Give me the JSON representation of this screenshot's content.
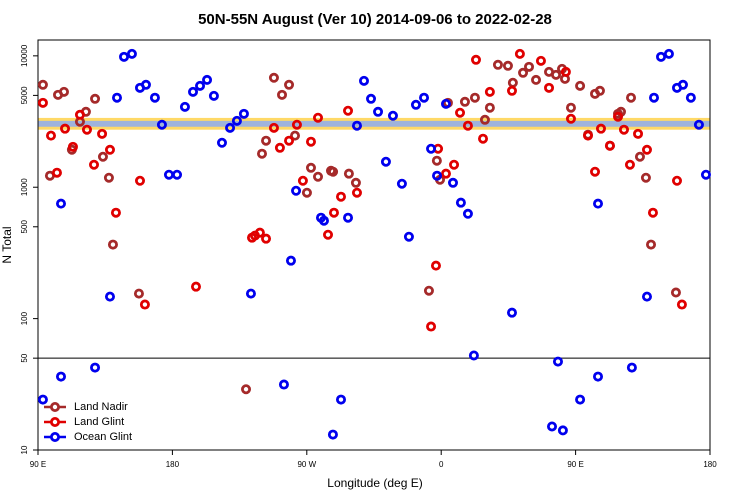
{
  "chart_data": {
    "type": "scatter",
    "title": "50N-55N August (Ver 10)   2014-09-06 to 2022-02-28",
    "x_label": "Longitude (deg E)",
    "y_label": "N Total",
    "xlim": [
      -270,
      180
    ],
    "xticks": [
      {
        "value": -270,
        "label": "90 E"
      },
      {
        "value": -180,
        "label": "180"
      },
      {
        "value": -90,
        "label": "90 W"
      },
      0,
      {
        "value": 90,
        "label": "90 E"
      },
      {
        "value": 180,
        "label": "180"
      }
    ],
    "ylim": [
      10,
      13200
    ],
    "yticks": [
      10,
      50,
      100,
      500,
      1000,
      5000,
      10000
    ],
    "log_y": true,
    "hline": 50,
    "band": {
      "low": 2740,
      "high": 3370,
      "colors": [
        "#ffd966",
        "#9fb3dc"
      ]
    },
    "legend": "lower left",
    "series": [
      {
        "name": "Land Nadir",
        "color": "#a52a2a",
        "x": [
          -266.7,
          -262,
          -256.6,
          -252.6,
          -247.3,
          -241.9,
          -237.9,
          -231.8,
          -226.5,
          -222.5,
          -219.8,
          -202.4,
          -130.7,
          -120,
          -117.3,
          -112,
          -106.6,
          -101.9,
          -97.9,
          -89.9,
          -87.2,
          -82.5,
          -73.8,
          -72.4,
          -61.8,
          -57.1,
          -8.2,
          -2.9,
          -0.8,
          4.5,
          15.9,
          22.6,
          29.3,
          32.6,
          38,
          44.7,
          48,
          54.8,
          58.8,
          63.5,
          72.2,
          76.9,
          80.9,
          82.9,
          86.9,
          93,
          98.3,
          103,
          106.3,
          113,
          118.4,
          120.4,
          127.1,
          133.1,
          137.1,
          140.5,
          157.2
        ],
        "values": [
          6020,
          1224,
          5050,
          5320,
          1928,
          3150,
          3750,
          4710,
          1706,
          1181,
          366,
          155,
          29,
          1800,
          2260,
          6810,
          5050,
          6020,
          2470,
          908,
          1406,
          1202,
          1334,
          1312,
          1268,
          1081,
          163,
          1592,
          1140,
          4390,
          4470,
          4800,
          3260,
          4030,
          8550,
          8400,
          6240,
          7430,
          8250,
          6560,
          7550,
          7170,
          7960,
          6680,
          4030,
          5910,
          2510,
          5140,
          5420,
          2070,
          3620,
          3750,
          4800,
          1706,
          1181,
          366,
          158
        ]
      },
      {
        "name": "Land Glint",
        "color": "#e00000",
        "x": [
          -266.7,
          -261.3,
          -257.3,
          -251.9,
          -246.6,
          -241.9,
          -237.2,
          -232.5,
          -227.1,
          -221.8,
          -217.8,
          -201.7,
          -198.4,
          -164.2,
          -126.7,
          -124.7,
          -121.4,
          -117.3,
          -112,
          -108,
          -101.9,
          -96.6,
          -92.6,
          -87.2,
          -82.5,
          -75.8,
          -71.8,
          -67.1,
          -62.4,
          -56.4,
          -6.8,
          -3.5,
          -2.1,
          3.2,
          8.6,
          12.6,
          17.9,
          23.3,
          28,
          32.6,
          47.4,
          52.7,
          66.8,
          72.2,
          83.5,
          86.9,
          98.3,
          103,
          107,
          113,
          118.4,
          122.4,
          126.4,
          131.8,
          137.8,
          141.8,
          157.9,
          161.2
        ],
        "values": [
          4390,
          2470,
          1290,
          2790,
          2030,
          3560,
          2740,
          1483,
          2550,
          1928,
          640,
          1120,
          128,
          175,
          413,
          428,
          451,
          406,
          2830,
          1996,
          2260,
          2990,
          1120,
          2220,
          3380,
          435,
          640,
          847,
          3820,
          908,
          87,
          253,
          1963,
          1268,
          1483,
          3690,
          2940,
          9330,
          2340,
          5320,
          5420,
          10350,
          9160,
          5710,
          7550,
          3320,
          2470,
          1312,
          2790,
          2070,
          3440,
          2740,
          1483,
          2550,
          1928,
          640,
          1120,
          128
        ]
      },
      {
        "name": "Ocean Glint",
        "color": "#0000ee",
        "x": [
          -266.7,
          -254.6,
          -254.6,
          -231.8,
          -221.8,
          -217.1,
          -212.4,
          -207.1,
          -201.7,
          -197.7,
          -191.7,
          -187,
          -182.3,
          -176.9,
          -171.6,
          -166.2,
          -161.5,
          -156.8,
          -152.2,
          -146.8,
          -141.4,
          -136.8,
          -132.1,
          -127.4,
          -105.3,
          -100.6,
          -97.2,
          -80.5,
          -78.5,
          -67.1,
          -72.5,
          -62.4,
          -56.4,
          -51.7,
          -47,
          -42.3,
          -32.3,
          -37,
          -26.3,
          -21.6,
          -16.9,
          -11.5,
          -6.8,
          -2.8,
          3.2,
          7.9,
          13.2,
          17.9,
          21.9,
          47.4,
          78.2,
          74.2,
          81.5,
          93,
          105,
          105,
          127.7,
          137.8,
          142.5,
          147.2,
          152.5,
          157.9,
          161.9,
          167.2,
          172.6,
          177.3
        ],
        "values": [
          24.2,
          750,
          36.2,
          42.4,
          147,
          4800,
          9830,
          10350,
          5710,
          6020,
          4800,
          2990,
          1245,
          1245,
          4090,
          5320,
          5910,
          6560,
          4960,
          2180,
          2830,
          3200,
          3620,
          155,
          31.5,
          276,
          940,
          586,
          556,
          24.2,
          13.1,
          586,
          2940,
          6450,
          4710,
          3750,
          3500,
          1563,
          1063,
          420,
          4240,
          4800,
          1963,
          1224,
          4310,
          1081,
          763,
          628,
          52.4,
          111,
          47.1,
          15.1,
          14.1,
          24.2,
          36.2,
          750,
          42.4,
          147,
          4800,
          9830,
          10350,
          5710,
          6020,
          4800,
          2990,
          1245
        ]
      }
    ]
  }
}
